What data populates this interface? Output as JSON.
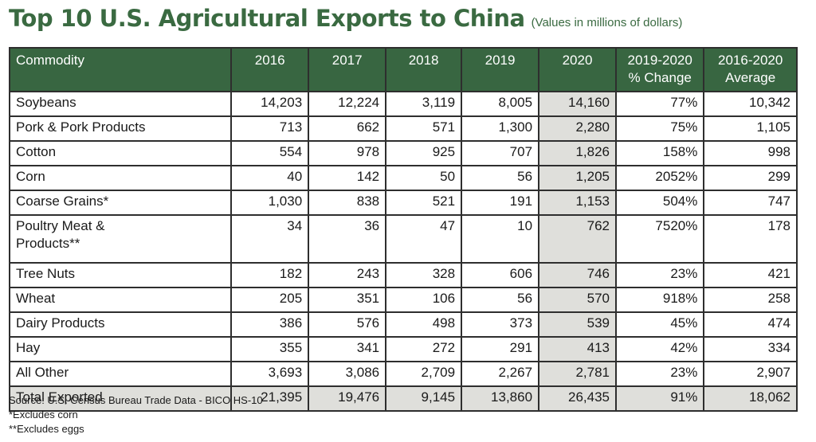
{
  "title": {
    "main": "Top 10 U.S. Agricultural Exports to China",
    "subtitle": "(Values in millions of dollars)"
  },
  "table": {
    "headers": [
      "Commodity",
      "2016",
      "2017",
      "2018",
      "2019",
      "2020",
      [
        "2019-2020",
        "% Change"
      ],
      [
        "2016-2020",
        "Average"
      ]
    ],
    "rows": [
      [
        "Soybeans",
        "14,203",
        "12,224",
        "3,119",
        "8,005",
        "14,160",
        "77%",
        "10,342"
      ],
      [
        "Pork & Pork Products",
        "713",
        "662",
        "571",
        "1,300",
        "2,280",
        "75%",
        "1,105"
      ],
      [
        "Cotton",
        "554",
        "978",
        "925",
        "707",
        "1,826",
        "158%",
        "998"
      ],
      [
        "Corn",
        "40",
        "142",
        "50",
        "56",
        "1,205",
        "2052%",
        "299"
      ],
      [
        "Coarse Grains*",
        "1,030",
        "838",
        "521",
        "191",
        "1,153",
        "504%",
        "747"
      ],
      [
        [
          "Poultry Meat &",
          "Products**"
        ],
        "34",
        "36",
        "47",
        "10",
        "762",
        "7520%",
        "178"
      ],
      [
        "Tree Nuts",
        "182",
        "243",
        "328",
        "606",
        "746",
        "23%",
        "421"
      ],
      [
        "Wheat",
        "205",
        "351",
        "106",
        "56",
        "570",
        "918%",
        "258"
      ],
      [
        "Dairy Products",
        "386",
        "576",
        "498",
        "373",
        "539",
        "45%",
        "474"
      ],
      [
        "Hay",
        "355",
        "341",
        "272",
        "291",
        "413",
        "42%",
        "334"
      ],
      [
        "All Other",
        "3,693",
        "3,086",
        "2,709",
        "2,267",
        "2,781",
        "23%",
        "2,907"
      ]
    ],
    "total": [
      "Total Exported",
      "21,395",
      "19,476",
      "9,145",
      "13,860",
      "26,435",
      "91%",
      "18,062"
    ]
  },
  "footer": {
    "source": "Source: U.S. Census Bureau Trade Data - BICO HS-10",
    "note1": "*Excludes corn",
    "note2": "**Excludes eggs"
  },
  "colors": {
    "header_green": "#386641",
    "title_green": "#3a6a41",
    "highlight_gray": "#dfdfdb"
  },
  "chart_data": {
    "type": "table",
    "title": "Top 10 U.S. Agricultural Exports to China",
    "subtitle": "(Values in millions of dollars)",
    "columns": [
      "Commodity",
      "2016",
      "2017",
      "2018",
      "2019",
      "2020",
      "2019-2020 % Change",
      "2016-2020 Average"
    ],
    "series": [
      {
        "name": "Soybeans",
        "values": [
          14203,
          12224,
          3119,
          8005,
          14160
        ],
        "pct_change_2019_2020": 77,
        "avg_2016_2020": 10342
      },
      {
        "name": "Pork & Pork Products",
        "values": [
          713,
          662,
          571,
          1300,
          2280
        ],
        "pct_change_2019_2020": 75,
        "avg_2016_2020": 1105
      },
      {
        "name": "Cotton",
        "values": [
          554,
          978,
          925,
          707,
          1826
        ],
        "pct_change_2019_2020": 158,
        "avg_2016_2020": 998
      },
      {
        "name": "Corn",
        "values": [
          40,
          142,
          50,
          56,
          1205
        ],
        "pct_change_2019_2020": 2052,
        "avg_2016_2020": 299
      },
      {
        "name": "Coarse Grains*",
        "values": [
          1030,
          838,
          521,
          191,
          1153
        ],
        "pct_change_2019_2020": 504,
        "avg_2016_2020": 747
      },
      {
        "name": "Poultry Meat & Products**",
        "values": [
          34,
          36,
          47,
          10,
          762
        ],
        "pct_change_2019_2020": 7520,
        "avg_2016_2020": 178
      },
      {
        "name": "Tree Nuts",
        "values": [
          182,
          243,
          328,
          606,
          746
        ],
        "pct_change_2019_2020": 23,
        "avg_2016_2020": 421
      },
      {
        "name": "Wheat",
        "values": [
          205,
          351,
          106,
          56,
          570
        ],
        "pct_change_2019_2020": 918,
        "avg_2016_2020": 258
      },
      {
        "name": "Dairy Products",
        "values": [
          386,
          576,
          498,
          373,
          539
        ],
        "pct_change_2019_2020": 45,
        "avg_2016_2020": 474
      },
      {
        "name": "Hay",
        "values": [
          355,
          341,
          272,
          291,
          413
        ],
        "pct_change_2019_2020": 42,
        "avg_2016_2020": 334
      },
      {
        "name": "All Other",
        "values": [
          3693,
          3086,
          2709,
          2267,
          2781
        ],
        "pct_change_2019_2020": 23,
        "avg_2016_2020": 2907
      },
      {
        "name": "Total Exported",
        "values": [
          21395,
          19476,
          9145,
          13860,
          26435
        ],
        "pct_change_2019_2020": 91,
        "avg_2016_2020": 18062
      }
    ],
    "categories": [
      "2016",
      "2017",
      "2018",
      "2019",
      "2020"
    ],
    "units": "millions of dollars",
    "notes": [
      "Source: U.S. Census Bureau Trade Data - BICO HS-10",
      "*Excludes corn",
      "**Excludes eggs"
    ]
  }
}
